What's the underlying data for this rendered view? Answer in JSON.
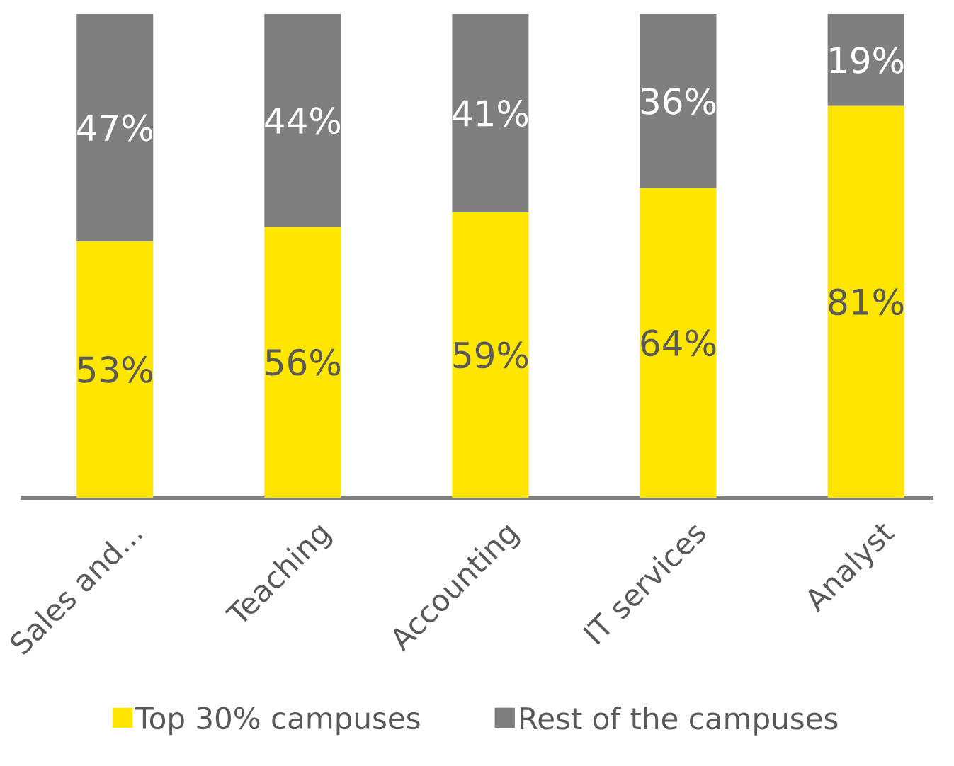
{
  "chart_data": {
    "type": "bar",
    "stacked": true,
    "categories": [
      "Sales and...",
      "Teaching",
      "Accounting",
      "IT services",
      "Analyst"
    ],
    "series": [
      {
        "name": "Top 30% campuses",
        "color": "#ffe600",
        "values": [
          53,
          56,
          59,
          64,
          81
        ],
        "value_labels": [
          "53%",
          "56%",
          "59%",
          "64%",
          "81%"
        ]
      },
      {
        "name": "Rest of the campuses",
        "color": "#7f7f7f",
        "values": [
          47,
          44,
          41,
          36,
          19
        ],
        "value_labels": [
          "47%",
          "44%",
          "41%",
          "36%",
          "19%"
        ]
      }
    ],
    "ylim": [
      0,
      100
    ],
    "legend": "bottom"
  }
}
